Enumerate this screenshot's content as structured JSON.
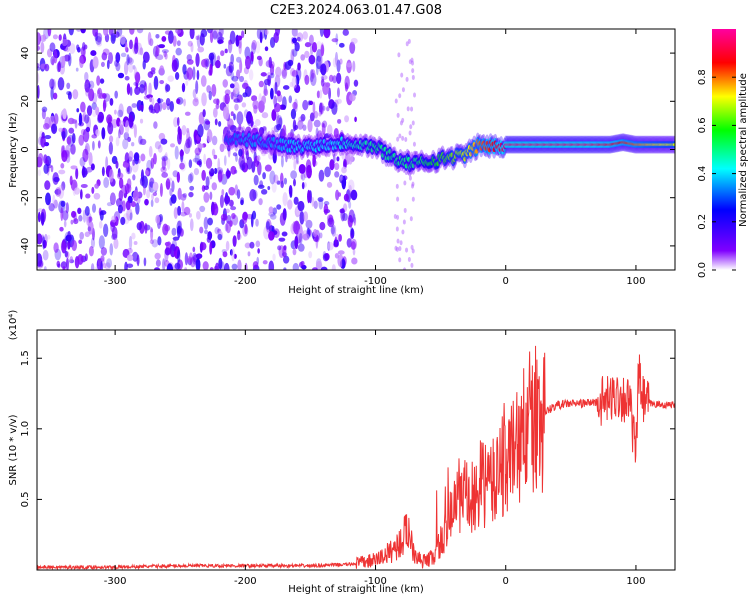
{
  "title": "C2E3.2024.063.01.47.G08",
  "chart_data": [
    {
      "type": "heatmap",
      "xlabel": "Height of straight line (km)",
      "ylabel": "Frequency (Hz)",
      "xlim": [
        -360,
        130
      ],
      "ylim": [
        -50,
        50
      ],
      "x_ticks": [
        -300,
        -200,
        -100,
        0,
        100
      ],
      "x_tick_labels": [
        "-300",
        "-200",
        "-100",
        "0",
        "100"
      ],
      "y_ticks": [
        -40,
        -20,
        0,
        20,
        40
      ],
      "y_tick_labels": [
        "-40",
        "-20",
        "0",
        "20",
        "40"
      ],
      "colorbar": {
        "label": "Normalized spectral amplitude",
        "range": [
          0,
          1
        ],
        "ticks": [
          0.0,
          0.2,
          0.4,
          0.6,
          0.8
        ],
        "tick_labels": [
          "0.0",
          "0.2",
          "0.4",
          "0.6",
          "0.8"
        ],
        "colormap": [
          "#ffffff",
          "#8000ff",
          "#0000ff",
          "#00ffff",
          "#00ff00",
          "#ffff00",
          "#ff0000",
          "#ff00a0"
        ]
      },
      "noise_region": {
        "x": [
          -360,
          -115
        ],
        "y": [
          -50,
          50
        ],
        "amplitude": 0.15
      },
      "signal_ridge": {
        "x": [
          -215,
          -200,
          -180,
          -160,
          -140,
          -120,
          -100,
          -90,
          -80,
          -70,
          -60,
          -50,
          -40,
          -30,
          -20,
          -10,
          0,
          20,
          40,
          60,
          80,
          90,
          100,
          110,
          130
        ],
        "y": [
          4,
          4,
          3,
          1,
          2,
          3,
          1,
          -2,
          -5,
          -6,
          -5,
          -4,
          -3,
          -2,
          2,
          1,
          2,
          2,
          2,
          2,
          2,
          3,
          2,
          2,
          2
        ],
        "amplitude": [
          0.3,
          0.35,
          0.35,
          0.4,
          0.4,
          0.45,
          0.5,
          0.5,
          0.5,
          0.5,
          0.55,
          0.6,
          0.65,
          0.7,
          0.8,
          0.85,
          0.95,
          0.95,
          0.95,
          0.95,
          0.9,
          0.85,
          0.8,
          0.75,
          0.7
        ]
      }
    },
    {
      "type": "line",
      "xlabel": "Height of straight line (km)",
      "ylabel": "SNR (10 * v/v)",
      "y_scale_label": "(x10⁴)",
      "xlim": [
        -360,
        130
      ],
      "ylim": [
        0.0,
        1.7
      ],
      "x_ticks": [
        -300,
        -200,
        -100,
        0,
        100
      ],
      "x_tick_labels": [
        "-300",
        "-200",
        "-100",
        "0",
        "100"
      ],
      "y_ticks": [
        0.5,
        1.0,
        1.5
      ],
      "y_tick_labels": [
        "0.5",
        "1.0",
        "1.5"
      ],
      "color": "#ee3333",
      "series": [
        {
          "x": [
            -360,
            -300,
            -250,
            -200,
            -150,
            -120,
            -100,
            -90,
            -80,
            -75,
            -70,
            -65,
            -60,
            -55,
            -50,
            -45,
            -40,
            -35,
            -30,
            -25,
            -20,
            -15,
            -10,
            -5,
            0,
            5,
            10,
            15,
            20,
            30,
            40,
            50,
            60,
            70,
            80,
            85,
            90,
            95,
            100,
            102,
            105,
            110,
            120,
            130
          ],
          "y": [
            0.02,
            0.02,
            0.03,
            0.03,
            0.03,
            0.04,
            0.07,
            0.12,
            0.2,
            0.3,
            0.12,
            0.06,
            0.07,
            0.1,
            0.2,
            0.3,
            0.45,
            0.55,
            0.5,
            0.45,
            0.6,
            0.62,
            0.6,
            0.75,
            0.75,
            0.82,
            0.9,
            1.0,
            1.05,
            1.12,
            1.17,
            1.18,
            1.18,
            1.19,
            1.2,
            1.25,
            1.22,
            1.2,
            0.8,
            1.4,
            1.2,
            1.18,
            1.17,
            1.17
          ]
        }
      ]
    }
  ]
}
